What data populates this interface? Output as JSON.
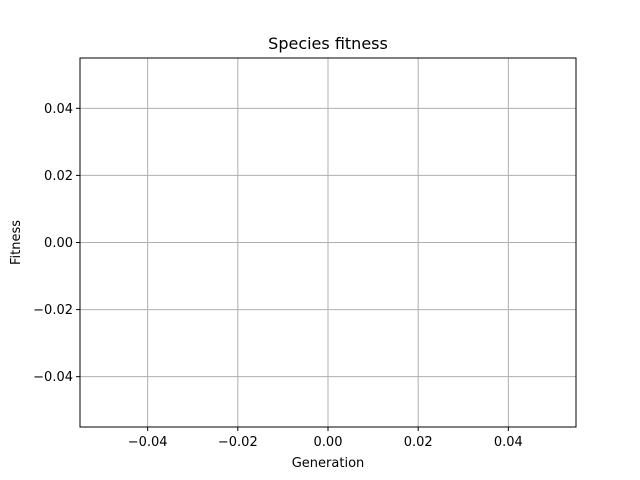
{
  "chart_data": {
    "type": "line",
    "title": "Species fitness",
    "xlabel": "Generation",
    "ylabel": "Fitness",
    "xlim": [
      -0.055,
      0.055
    ],
    "ylim": [
      -0.055,
      0.055
    ],
    "x_ticks": [
      -0.04,
      -0.02,
      0.0,
      0.02,
      0.04
    ],
    "y_ticks": [
      -0.04,
      -0.02,
      0.0,
      0.02,
      0.04
    ],
    "x_tick_labels": [
      "−0.04",
      "−0.02",
      "0.00",
      "0.02",
      "0.04"
    ],
    "y_tick_labels": [
      "−0.04",
      "−0.02",
      "0.00",
      "0.02",
      "0.04"
    ],
    "grid": true,
    "series": [],
    "colors": {
      "grid": "#b0b0b0",
      "axes": "#000000",
      "background": "#ffffff"
    }
  }
}
